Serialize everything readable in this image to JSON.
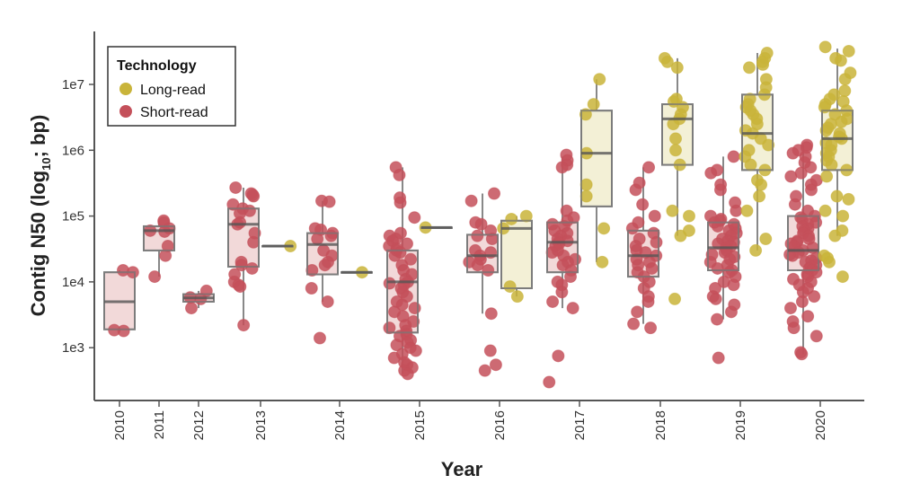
{
  "chart_data": {
    "type": "box+jitter",
    "xlabel": "Year",
    "ylabel_prefix": "Contig N50 (log",
    "ylabel_sub": "10",
    "ylabel_suffix": "; bp)",
    "y_scale": "log10",
    "ylim": [
      160,
      60000000
    ],
    "y_ticks": [
      1000,
      10000,
      100000,
      1000000,
      10000000
    ],
    "y_tick_labels": [
      "1e3",
      "1e4",
      "1e5",
      "1e6",
      "1e7"
    ],
    "categories": [
      "2010",
      "2011",
      "2012",
      "2013",
      "2014",
      "2015",
      "2016",
      "2017",
      "2018",
      "2019",
      "2020"
    ],
    "grid": false,
    "legend": {
      "title": "Technology",
      "placement": "top-left",
      "entries": [
        {
          "label": "Long-read",
          "color": "#c9b43a",
          "box_fill": "#f3f0d6"
        },
        {
          "label": "Short-read",
          "color": "#c4505a",
          "box_fill": "#f2d9d9"
        }
      ]
    },
    "groups": [
      {
        "year": "2010",
        "tech": "Short-read",
        "stats": {
          "low": 1800,
          "q1": 1900,
          "median": 5000,
          "q3": 14000,
          "high": 15000
        },
        "points": [
          1800,
          1850,
          15000,
          14000
        ]
      },
      {
        "year": "2011",
        "tech": "Short-read",
        "stats": {
          "low": 12000,
          "q1": 30000,
          "median": 60000,
          "q3": 70000,
          "high": 85000
        },
        "points": [
          80000,
          85000,
          60000,
          65000,
          58000,
          35000,
          25000,
          12000
        ]
      },
      {
        "year": "2012",
        "tech": "Short-read",
        "stats": {
          "low": 4000,
          "q1": 5000,
          "median": 5700,
          "q3": 6500,
          "high": 7300
        },
        "points": [
          7300,
          5800,
          5500,
          4000
        ]
      },
      {
        "year": "2013",
        "tech": "Short-read",
        "stats": {
          "low": 2200,
          "q1": 17000,
          "median": 75000,
          "q3": 130000,
          "high": 270000
        },
        "points": [
          270000,
          220000,
          200000,
          210000,
          150000,
          130000,
          120000,
          110000,
          75000,
          80000,
          55000,
          40000,
          20000,
          18000,
          16000,
          13000,
          10000,
          9000,
          8500,
          2200
        ]
      },
      {
        "year": "2013",
        "tech": "Long-read",
        "stats": {
          "low": 35000,
          "q1": 35000,
          "median": 35000,
          "q3": 35000,
          "high": 35000
        },
        "points": [
          35000
        ]
      },
      {
        "year": "2014",
        "tech": "Short-read",
        "stats": {
          "low": 5000,
          "q1": 13000,
          "median": 37000,
          "q3": 55000,
          "high": 170000
        },
        "points": [
          170000,
          165000,
          65000,
          62000,
          55000,
          50000,
          45000,
          30000,
          25000,
          20000,
          15000,
          18000,
          8000,
          5000,
          1400
        ]
      },
      {
        "year": "2014",
        "tech": "Long-read",
        "stats": {
          "low": 14000,
          "q1": 14000,
          "median": 14000,
          "q3": 14000,
          "high": 14000
        },
        "points": [
          14000
        ]
      },
      {
        "year": "2015",
        "tech": "Short-read",
        "stats": {
          "low": 400,
          "q1": 1700,
          "median": 10000,
          "q3": 30000,
          "high": 550000
        },
        "points": [
          550000,
          420000,
          190000,
          160000,
          95000,
          55000,
          50000,
          45000,
          42000,
          38000,
          35000,
          32000,
          30000,
          28000,
          25000,
          22000,
          18000,
          15000,
          13000,
          11000,
          10000,
          9500,
          9000,
          8000,
          7000,
          6000,
          5000,
          4500,
          4000,
          3500,
          3000,
          2500,
          2200,
          2000,
          1800,
          1600,
          1500,
          1300,
          1200,
          1100,
          1000,
          900,
          800,
          700,
          600,
          550,
          500,
          450,
          400
        ]
      },
      {
        "year": "2015",
        "tech": "Long-read",
        "stats": {
          "low": 67000,
          "q1": 67000,
          "median": 67000,
          "q3": 67000,
          "high": 67000
        },
        "points": [
          67000
        ]
      },
      {
        "year": "2016",
        "tech": "Short-read",
        "stats": {
          "low": 3300,
          "q1": 14000,
          "median": 25000,
          "q3": 52000,
          "high": 220000
        },
        "points": [
          220000,
          170000,
          80000,
          75000,
          60000,
          50000,
          45000,
          30000,
          28000,
          25000,
          22000,
          20000,
          18000,
          15000,
          3300,
          900,
          550,
          450
        ]
      },
      {
        "year": "2016",
        "tech": "Long-read",
        "stats": {
          "low": 6000,
          "q1": 8000,
          "median": 65000,
          "q3": 85000,
          "high": 100000
        },
        "points": [
          100000,
          90000,
          65000,
          8500,
          6000
        ]
      },
      {
        "year": "2017",
        "tech": "Short-read",
        "stats": {
          "low": 4000,
          "q1": 14000,
          "median": 40000,
          "q3": 80000,
          "high": 800000
        },
        "points": [
          850000,
          700000,
          600000,
          550000,
          120000,
          95000,
          85000,
          75000,
          70000,
          60000,
          55000,
          50000,
          45000,
          42000,
          40000,
          38000,
          35000,
          30000,
          28000,
          25000,
          22000,
          20000,
          18000,
          15000,
          12000,
          10000,
          9000,
          7000,
          5000,
          4000,
          750,
          300
        ]
      },
      {
        "year": "2017",
        "tech": "Long-read",
        "stats": {
          "low": 20000,
          "q1": 140000,
          "median": 900000,
          "q3": 4000000,
          "high": 12000000
        },
        "points": [
          12000000,
          5000000,
          3500000,
          900000,
          300000,
          200000,
          65000,
          20000
        ]
      },
      {
        "year": "2018",
        "tech": "Short-read",
        "stats": {
          "low": 2300,
          "q1": 12000,
          "median": 25000,
          "q3": 60000,
          "high": 550000
        },
        "points": [
          550000,
          320000,
          250000,
          150000,
          100000,
          80000,
          65000,
          55000,
          45000,
          40000,
          35000,
          30000,
          28000,
          25000,
          22000,
          20000,
          18000,
          16000,
          14000,
          12000,
          10000,
          8000,
          6000,
          5000,
          3500,
          2300,
          2000
        ]
      },
      {
        "year": "2018",
        "tech": "Long-read",
        "stats": {
          "low": 50000,
          "q1": 600000,
          "median": 3000000,
          "q3": 5000000,
          "high": 25000000
        },
        "points": [
          25000000,
          22000000,
          18000000,
          6000000,
          5500000,
          4500000,
          3500000,
          3000000,
          2500000,
          1500000,
          1000000,
          600000,
          120000,
          100000,
          60000,
          50000,
          5500
        ]
      },
      {
        "year": "2019",
        "tech": "Short-read",
        "stats": {
          "low": 2700,
          "q1": 15000,
          "median": 33000,
          "q3": 80000,
          "high": 800000
        },
        "points": [
          800000,
          500000,
          450000,
          300000,
          250000,
          160000,
          120000,
          100000,
          90000,
          85000,
          80000,
          75000,
          70000,
          65000,
          60000,
          55000,
          50000,
          45000,
          42000,
          40000,
          38000,
          35000,
          33000,
          30000,
          28000,
          26000,
          24000,
          22000,
          20000,
          18000,
          16000,
          15000,
          14000,
          12000,
          10000,
          9000,
          8000,
          6000,
          5500,
          4500,
          3500,
          2700,
          700
        ]
      },
      {
        "year": "2019",
        "tech": "Long-read",
        "stats": {
          "low": 30000,
          "q1": 500000,
          "median": 1800000,
          "q3": 7000000,
          "high": 30000000
        },
        "points": [
          30000000,
          25000000,
          22000000,
          20000000,
          18000000,
          12000000,
          9000000,
          7000000,
          6000000,
          5000000,
          4500000,
          4000000,
          3500000,
          3000000,
          2500000,
          2000000,
          1800000,
          1500000,
          1200000,
          1000000,
          800000,
          600000,
          500000,
          350000,
          300000,
          200000,
          120000,
          45000,
          30000
        ]
      },
      {
        "year": "2020",
        "tech": "Short-read",
        "stats": {
          "low": 800,
          "q1": 15000,
          "median": 30000,
          "q3": 100000,
          "high": 1200000
        },
        "points": [
          1200000,
          1100000,
          1000000,
          900000,
          800000,
          650000,
          550000,
          450000,
          400000,
          350000,
          300000,
          250000,
          200000,
          150000,
          120000,
          100000,
          95000,
          90000,
          80000,
          75000,
          70000,
          65000,
          60000,
          55000,
          50000,
          45000,
          42000,
          40000,
          38000,
          35000,
          33000,
          30000,
          28000,
          26000,
          25000,
          23000,
          21000,
          20000,
          18000,
          17000,
          16000,
          15000,
          14000,
          13000,
          12000,
          11000,
          10000,
          9000,
          8000,
          7000,
          6000,
          5000,
          4000,
          3000,
          2500,
          2000,
          1500,
          850,
          800
        ]
      },
      {
        "year": "2020",
        "tech": "Long-read",
        "stats": {
          "low": 50000,
          "q1": 500000,
          "median": 1500000,
          "q3": 4000000,
          "high": 35000000
        },
        "points": [
          37000000,
          32000000,
          25000000,
          23000000,
          15000000,
          12000000,
          8000000,
          7000000,
          6000000,
          5500000,
          5000000,
          4500000,
          4000000,
          3500000,
          3000000,
          2700000,
          2500000,
          2200000,
          2000000,
          1800000,
          1600000,
          1500000,
          1300000,
          1200000,
          1000000,
          900000,
          800000,
          700000,
          600000,
          500000,
          400000,
          200000,
          180000,
          120000,
          100000,
          60000,
          50000,
          25000,
          23000,
          20000,
          12000
        ]
      }
    ]
  }
}
